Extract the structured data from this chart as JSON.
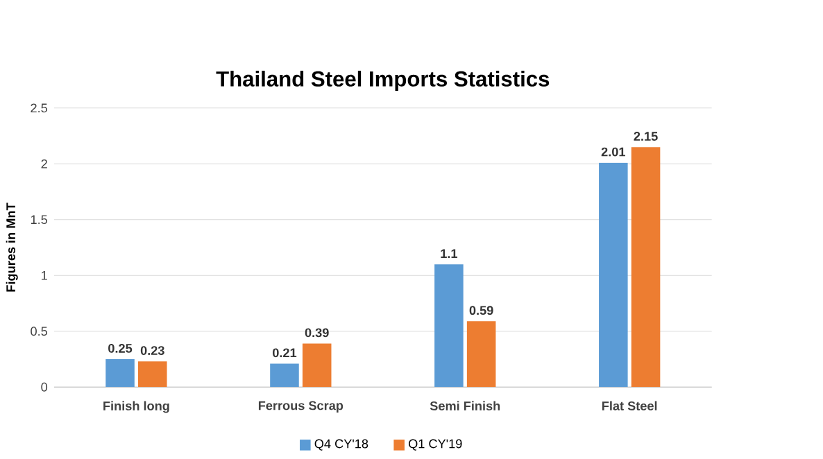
{
  "chart_data": {
    "type": "bar",
    "title": "Thailand Steel Imports Statistics",
    "ylabel": "Figures in MnT",
    "categories": [
      "Finish long",
      "Ferrous Scrap",
      "Semi Finish",
      "Flat Steel"
    ],
    "series": [
      {
        "name": "Q4 CY'18",
        "color": "#5b9bd5",
        "values": [
          0.25,
          0.21,
          1.1,
          2.01
        ]
      },
      {
        "name": "Q1 CY'19",
        "color": "#ed7d31",
        "values": [
          0.23,
          0.39,
          0.59,
          2.15
        ]
      }
    ],
    "ylim": [
      0,
      2.5
    ],
    "yticks": [
      0,
      0.5,
      1,
      1.5,
      2,
      2.5
    ],
    "grid": "y",
    "legend": "bottom",
    "data_labels": true
  }
}
